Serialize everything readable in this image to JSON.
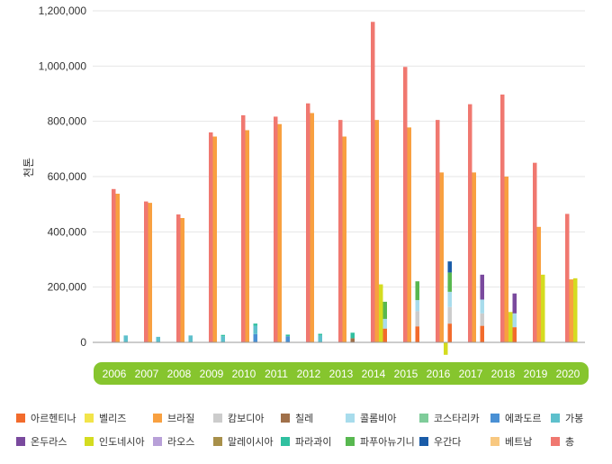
{
  "chart_data": {
    "type": "bar",
    "ylabel": "천톤",
    "ylim": [
      -50000,
      1200000
    ],
    "yticks": [
      "0",
      "200,000",
      "400,000",
      "600,000",
      "800,000",
      "1,000,000",
      "1,200,000"
    ],
    "ytick_values": [
      0,
      200000,
      400000,
      600000,
      800000,
      1000000,
      1200000
    ],
    "categories": [
      "2006",
      "2007",
      "2008",
      "2009",
      "2010",
      "2011",
      "2012",
      "2013",
      "2014",
      "2015",
      "2016",
      "2017",
      "2018",
      "2019",
      "2020"
    ],
    "series": [
      {
        "name": "아르헨티나",
        "color": "#f26b2c",
        "values": [
          0,
          0,
          0,
          0,
          0,
          0,
          0,
          0,
          50000,
          58000,
          68000,
          60000,
          55000,
          0,
          0
        ]
      },
      {
        "name": "벨리즈",
        "color": "#f2e44a",
        "values": [
          0,
          0,
          0,
          0,
          0,
          0,
          0,
          0,
          0,
          0,
          0,
          0,
          0,
          0,
          0
        ]
      },
      {
        "name": "브라질",
        "color": "#f8a040",
        "values": [
          538000,
          505000,
          450000,
          745000,
          768000,
          790000,
          830000,
          745000,
          805000,
          778000,
          615000,
          615000,
          600000,
          418000,
          228000
        ]
      },
      {
        "name": "캄보디아",
        "color": "#cccccc",
        "values": [
          0,
          0,
          0,
          0,
          0,
          0,
          0,
          0,
          0,
          55000,
          60000,
          45000,
          0,
          0,
          0
        ]
      },
      {
        "name": "칠레",
        "color": "#a0704a",
        "values": [
          0,
          0,
          0,
          0,
          0,
          0,
          0,
          15000,
          0,
          0,
          0,
          0,
          0,
          0,
          0
        ]
      },
      {
        "name": "콜롬비아",
        "color": "#a8dcec",
        "values": [
          0,
          0,
          0,
          0,
          0,
          0,
          0,
          0,
          35000,
          40000,
          55000,
          50000,
          50000,
          0,
          0
        ]
      },
      {
        "name": "코스타리카",
        "color": "#7fcc9a",
        "values": [
          0,
          0,
          0,
          0,
          0,
          0,
          0,
          0,
          0,
          0,
          0,
          0,
          0,
          0,
          0
        ]
      },
      {
        "name": "에콰도르",
        "color": "#4a90d4",
        "values": [
          0,
          0,
          0,
          0,
          30000,
          22000,
          0,
          0,
          0,
          0,
          0,
          0,
          0,
          0,
          0
        ]
      },
      {
        "name": "가봉",
        "color": "#5ec0cc",
        "values": [
          25000,
          20000,
          25000,
          22000,
          30000,
          0,
          25000,
          0,
          0,
          0,
          0,
          0,
          0,
          0,
          0
        ]
      },
      {
        "name": "온두라스",
        "color": "#7a4a9e",
        "values": [
          0,
          0,
          0,
          0,
          0,
          0,
          0,
          0,
          0,
          0,
          0,
          90000,
          72000,
          0,
          0
        ]
      },
      {
        "name": "인도네시아",
        "color": "#d4dc20",
        "values": [
          0,
          0,
          0,
          0,
          0,
          0,
          0,
          0,
          210000,
          0,
          -45000,
          0,
          110000,
          245000,
          232000
        ]
      },
      {
        "name": "라오스",
        "color": "#b8a0d8",
        "values": [
          0,
          0,
          0,
          0,
          0,
          0,
          0,
          0,
          0,
          0,
          0,
          0,
          0,
          0,
          0
        ]
      },
      {
        "name": "말레이시아",
        "color": "#a8904a",
        "values": [
          0,
          0,
          0,
          0,
          0,
          0,
          0,
          0,
          0,
          0,
          0,
          0,
          0,
          0,
          0
        ]
      },
      {
        "name": "파라과이",
        "color": "#30c0a0",
        "values": [
          0,
          0,
          0,
          5000,
          8000,
          6000,
          6000,
          20000,
          0,
          0,
          0,
          0,
          0,
          0,
          0
        ]
      },
      {
        "name": "파푸아뉴기니",
        "color": "#58b850",
        "values": [
          0,
          0,
          0,
          0,
          0,
          0,
          0,
          0,
          62000,
          68000,
          70000,
          0,
          0,
          0,
          0
        ]
      },
      {
        "name": "우간다",
        "color": "#1a5ca8",
        "values": [
          0,
          0,
          0,
          0,
          0,
          0,
          0,
          0,
          0,
          0,
          40000,
          0,
          0,
          0,
          0
        ]
      },
      {
        "name": "베트남",
        "color": "#f8c880",
        "values": [
          0,
          0,
          0,
          0,
          0,
          0,
          0,
          0,
          0,
          0,
          0,
          0,
          0,
          0,
          0
        ]
      },
      {
        "name": "총",
        "color": "#f07870",
        "values": [
          555000,
          510000,
          463000,
          760000,
          822000,
          817000,
          865000,
          805000,
          1160000,
          997000,
          805000,
          862000,
          897000,
          650000,
          465000
        ]
      }
    ]
  }
}
